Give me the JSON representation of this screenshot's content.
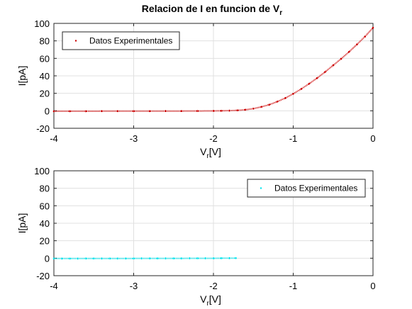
{
  "figure": {
    "title_main": "Relacion de I en funcion de V",
    "title_sub": "r"
  },
  "chart_data": [
    {
      "type": "scatter",
      "xlabel_main": "V",
      "xlabel_sub": "r",
      "xlabel_unit": "[V]",
      "ylabel": "I[pA]",
      "xlim": [
        -4,
        0
      ],
      "ylim": [
        -20,
        100
      ],
      "xticks": [
        -4,
        -3,
        -2,
        -1,
        0
      ],
      "yticks": [
        -20,
        0,
        20,
        40,
        60,
        80,
        100
      ],
      "grid": true,
      "legend_position": "top-left",
      "series": [
        {
          "name": "Datos Experimentales",
          "color": "#cc0000",
          "marker": "dot",
          "x": [
            -4.0,
            -3.8,
            -3.6,
            -3.4,
            -3.2,
            -3.0,
            -2.8,
            -2.6,
            -2.4,
            -2.2,
            -2.0,
            -1.9,
            -1.8,
            -1.7,
            -1.6,
            -1.5,
            -1.4,
            -1.3,
            -1.2,
            -1.1,
            -1.0,
            -0.9,
            -0.8,
            -0.7,
            -0.6,
            -0.5,
            -0.4,
            -0.3,
            -0.2,
            -0.1,
            0.0
          ],
          "y": [
            -0.5,
            -0.5,
            -0.5,
            -0.4,
            -0.4,
            -0.4,
            -0.4,
            -0.3,
            -0.3,
            -0.2,
            -0.1,
            0.0,
            0.2,
            0.5,
            1.2,
            2.5,
            4.5,
            7.0,
            10.5,
            14.5,
            19.5,
            25.0,
            31.0,
            37.5,
            44.5,
            52.0,
            59.5,
            67.5,
            76.0,
            85.0,
            95.0
          ]
        }
      ]
    },
    {
      "type": "scatter",
      "xlabel_main": "V",
      "xlabel_sub": "r",
      "xlabel_unit": "[V]",
      "ylabel": "I[pA]",
      "xlim": [
        -4,
        0
      ],
      "ylim": [
        -20,
        100
      ],
      "xticks": [
        -4,
        -3,
        -2,
        -1,
        0
      ],
      "yticks": [
        -20,
        0,
        20,
        40,
        60,
        80,
        100
      ],
      "grid": true,
      "legend_position": "top-right",
      "series": [
        {
          "name": "Datos Experimentales",
          "color": "#00e5ee",
          "marker": "dot",
          "x": [
            -4.0,
            -3.9,
            -3.8,
            -3.7,
            -3.6,
            -3.5,
            -3.4,
            -3.3,
            -3.2,
            -3.1,
            -3.0,
            -2.9,
            -2.8,
            -2.7,
            -2.6,
            -2.5,
            -2.4,
            -2.3,
            -2.2,
            -2.1,
            -2.0,
            -1.9,
            -1.8,
            -1.72
          ],
          "y": [
            -0.4,
            -0.4,
            -0.4,
            -0.4,
            -0.3,
            -0.3,
            -0.3,
            -0.3,
            -0.3,
            -0.3,
            -0.3,
            -0.2,
            -0.2,
            -0.2,
            -0.2,
            -0.2,
            -0.2,
            -0.1,
            -0.1,
            -0.1,
            -0.1,
            0.0,
            0.0,
            0.1
          ]
        }
      ]
    }
  ]
}
